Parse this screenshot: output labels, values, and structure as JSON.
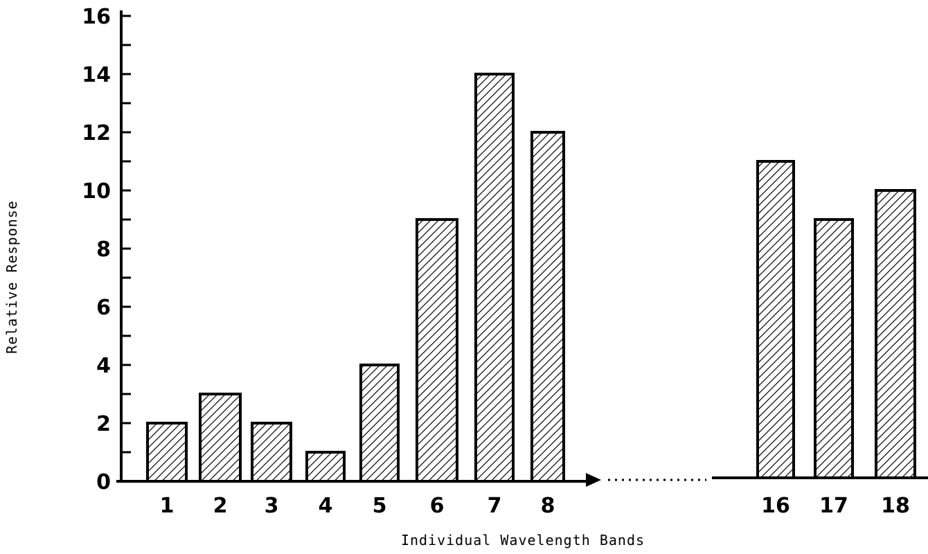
{
  "chart_data": {
    "type": "bar",
    "xlabel": "Individual Wavelength Bands",
    "ylabel": "Relative Response",
    "ylim": [
      0,
      16
    ],
    "yticks": [
      "0",
      "2",
      "4",
      "6",
      "8",
      "10",
      "12",
      "14",
      "16"
    ],
    "categories": [
      "1",
      "2",
      "3",
      "4",
      "5",
      "6",
      "7",
      "8",
      "16",
      "17",
      "18"
    ],
    "values": [
      2,
      3,
      2,
      1,
      4,
      9,
      14,
      12,
      11,
      9,
      10
    ],
    "axis_break": "between bands 8 and 16 (dotted line)",
    "bar_fill": "diagonal hatching",
    "colors": {
      "bar_stroke": "#000000",
      "hatch": "#000000",
      "background": "#ffffff"
    },
    "grid": false,
    "legend": "none"
  }
}
